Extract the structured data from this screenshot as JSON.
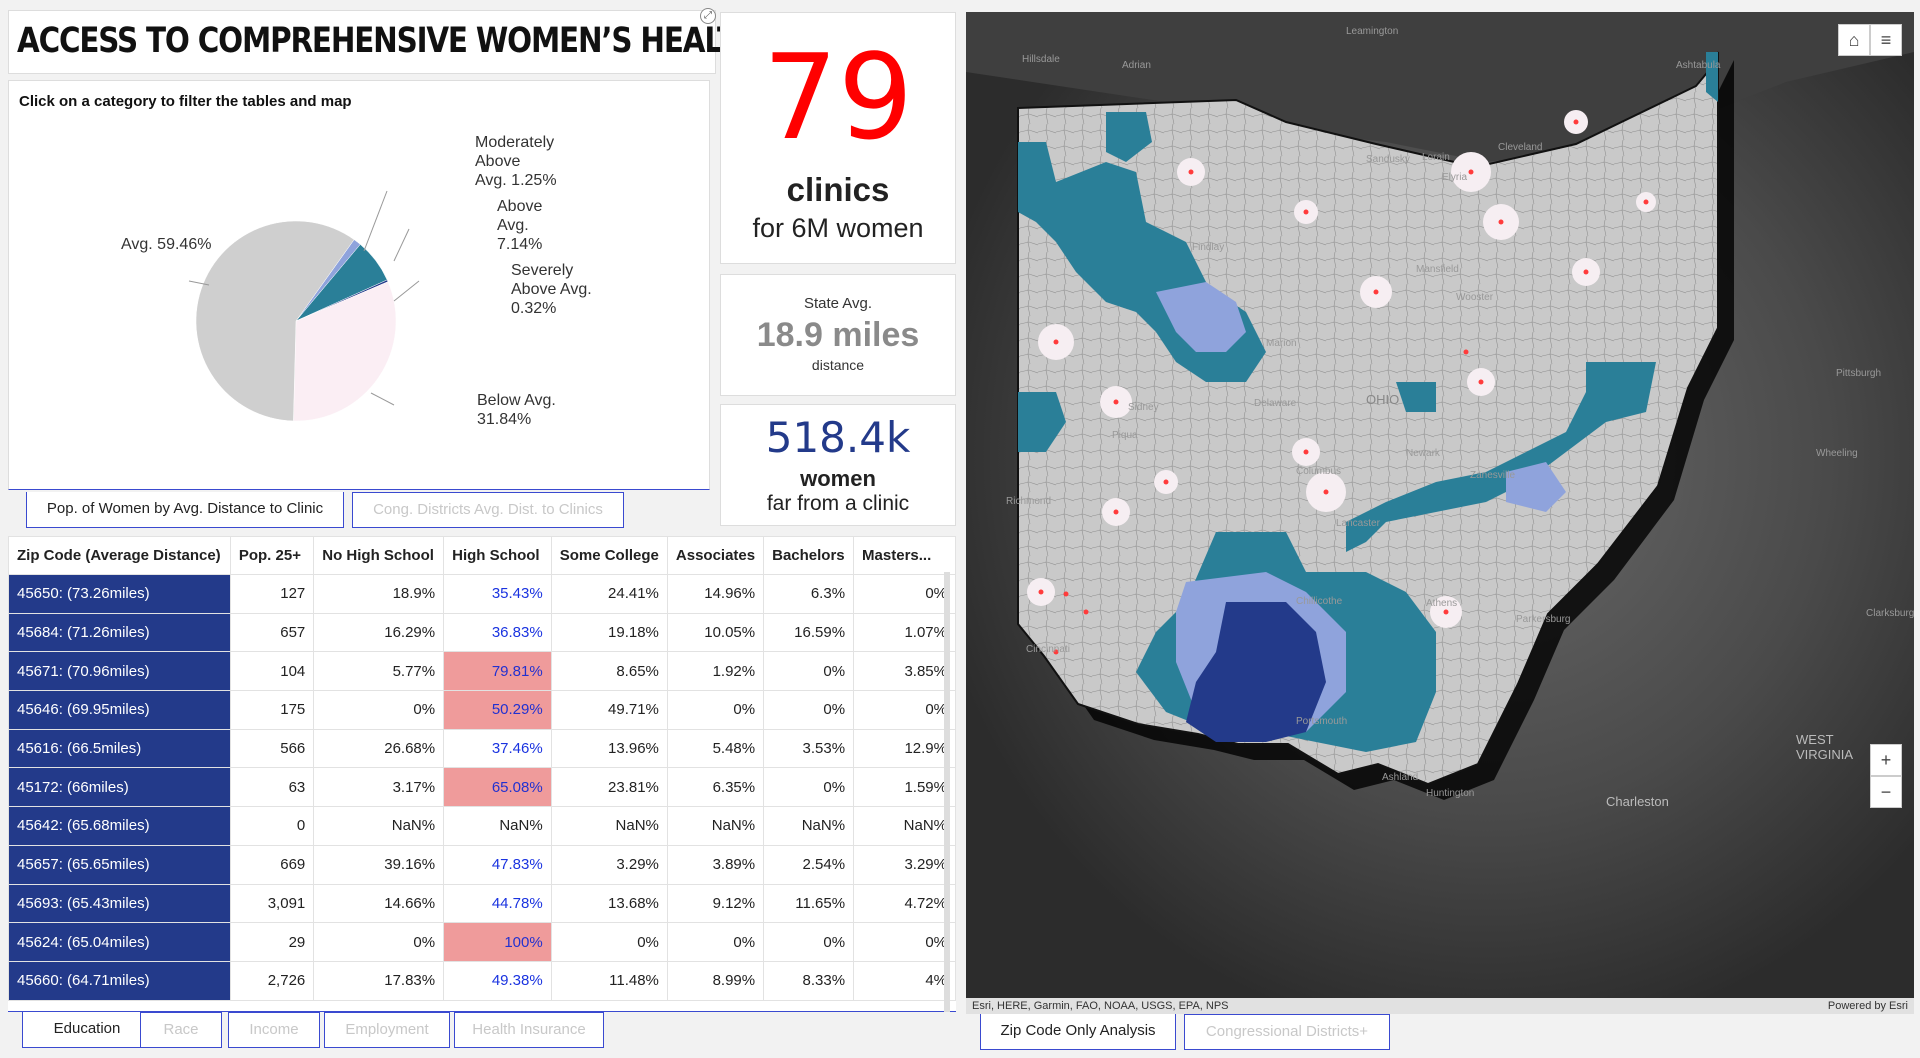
{
  "header": {
    "title": "ACCESS TO COMPREHENSIVE WOMEN’S HEALTH: OHIO"
  },
  "pie": {
    "instruction": "Click on a category to filter the tables and map",
    "slices": [
      {
        "label": "Avg. 59.46%",
        "value": 59.46,
        "color": "#cfcfcf"
      },
      {
        "label": "Moderately Above Avg. 1.25%",
        "value": 1.25,
        "color": "#8fa3dc"
      },
      {
        "label": "Above Avg. 7.14%",
        "value": 7.14,
        "color": "#2a7f98"
      },
      {
        "label": "Severely Above Avg. 0.32%",
        "value": 0.32,
        "color": "#233a8a"
      },
      {
        "label": "Below Avg. 31.84%",
        "value": 31.84,
        "color": "#fbeef4"
      }
    ],
    "labels": {
      "avg": "Avg. 59.46%",
      "mod_l1": "Moderately",
      "mod_l2": "Above",
      "mod_l3": "Avg. 1.25%",
      "above_l1": "Above",
      "above_l2": "Avg.",
      "above_l3": "7.14%",
      "sev_l1": "Severely",
      "sev_l2": "Above Avg.",
      "sev_l3": "0.32%",
      "below_l1": "Below Avg.",
      "below_l2": "31.84%"
    },
    "tabs": [
      "Pop. of Women by Avg. Distance to Clinic",
      "Cong. Districts Avg. Dist. to Clinics"
    ]
  },
  "indicators": {
    "clinics": {
      "value": "79",
      "line1": "clinics",
      "line2": "for 6M women"
    },
    "state_avg": {
      "top": "State Avg.",
      "value": "18.9 miles",
      "bottom": "distance"
    },
    "women": {
      "value": "518.4k",
      "line1": "women",
      "line2": "far from a clinic"
    }
  },
  "table": {
    "headers": [
      "Zip Code (Average Distance)",
      "Pop. 25+",
      "No High School",
      "High School",
      "Some College",
      "Associates",
      "Bachelors",
      "Masters..."
    ],
    "rows": [
      {
        "zip": "45650: (73.26miles)",
        "pop": "127",
        "nohs": "18.9%",
        "hs": "35.43%",
        "hi": false,
        "sc": "24.41%",
        "assoc": "14.96%",
        "bach": "6.3%",
        "mast": "0%"
      },
      {
        "zip": "45684: (71.26miles)",
        "pop": "657",
        "nohs": "16.29%",
        "hs": "36.83%",
        "hi": false,
        "sc": "19.18%",
        "assoc": "10.05%",
        "bach": "16.59%",
        "mast": "1.07%"
      },
      {
        "zip": "45671: (70.96miles)",
        "pop": "104",
        "nohs": "5.77%",
        "hs": "79.81%",
        "hi": true,
        "sc": "8.65%",
        "assoc": "1.92%",
        "bach": "0%",
        "mast": "3.85%"
      },
      {
        "zip": "45646: (69.95miles)",
        "pop": "175",
        "nohs": "0%",
        "hs": "50.29%",
        "hi": true,
        "sc": "49.71%",
        "assoc": "0%",
        "bach": "0%",
        "mast": "0%"
      },
      {
        "zip": "45616: (66.5miles)",
        "pop": "566",
        "nohs": "26.68%",
        "hs": "37.46%",
        "hi": false,
        "sc": "13.96%",
        "assoc": "5.48%",
        "bach": "3.53%",
        "mast": "12.9%"
      },
      {
        "zip": "45172: (66miles)",
        "pop": "63",
        "nohs": "3.17%",
        "hs": "65.08%",
        "hi": true,
        "sc": "23.81%",
        "assoc": "6.35%",
        "bach": "0%",
        "mast": "1.59%"
      },
      {
        "zip": "45642: (65.68miles)",
        "pop": "0",
        "nohs": "NaN%",
        "hs": "NaN%",
        "hi": false,
        "plain": true,
        "sc": "NaN%",
        "assoc": "NaN%",
        "bach": "NaN%",
        "mast": "NaN%"
      },
      {
        "zip": "45657: (65.65miles)",
        "pop": "669",
        "nohs": "39.16%",
        "hs": "47.83%",
        "hi": false,
        "sc": "3.29%",
        "assoc": "3.89%",
        "bach": "2.54%",
        "mast": "3.29%"
      },
      {
        "zip": "45693: (65.43miles)",
        "pop": "3,091",
        "nohs": "14.66%",
        "hs": "44.78%",
        "hi": false,
        "sc": "13.68%",
        "assoc": "9.12%",
        "bach": "11.65%",
        "mast": "4.72%"
      },
      {
        "zip": "45624: (65.04miles)",
        "pop": "29",
        "nohs": "0%",
        "hs": "100%",
        "hi": true,
        "sc": "0%",
        "assoc": "0%",
        "bach": "0%",
        "mast": "0%"
      },
      {
        "zip": "45660: (64.71miles)",
        "pop": "2,726",
        "nohs": "17.83%",
        "hs": "49.38%",
        "hi": false,
        "sc": "11.48%",
        "assoc": "8.99%",
        "bach": "8.33%",
        "mast": "4%"
      }
    ],
    "tabs": [
      "Education",
      "Race",
      "Income",
      "Employment",
      "Health Insurance"
    ]
  },
  "map": {
    "attribution": "Esri, HERE, Garmin, FAO, NOAA, USGS, EPA, NPS",
    "powered": "Powered by Esri",
    "state_label": "OHIO",
    "places": [
      "Leamington",
      "Hillsdale",
      "Adrian",
      "Ashtabula",
      "Sandusky",
      "Cleveland",
      "Elyria",
      "Lorain",
      "Findlay",
      "Wooster",
      "Mansfield",
      "Marion",
      "Delaware",
      "Sidney",
      "Piqua",
      "Columbus",
      "Newark",
      "Zanesville",
      "Richmond",
      "Lancaster",
      "Chillicothe",
      "Athens",
      "Parkersburg",
      "Clarksburg",
      "Cincinnati",
      "Portsmouth",
      "Ashland",
      "Huntington",
      "Charleston",
      "WEST VIRGINIA",
      "Pittsburgh",
      "Wheeling"
    ],
    "tabs": [
      "Zip Code Only Analysis",
      "Congressional Districts+"
    ],
    "icons": {
      "home": "home-icon",
      "legend": "legend-list-icon",
      "zoom_in": "plus-icon",
      "zoom_out": "minus-icon"
    }
  }
}
